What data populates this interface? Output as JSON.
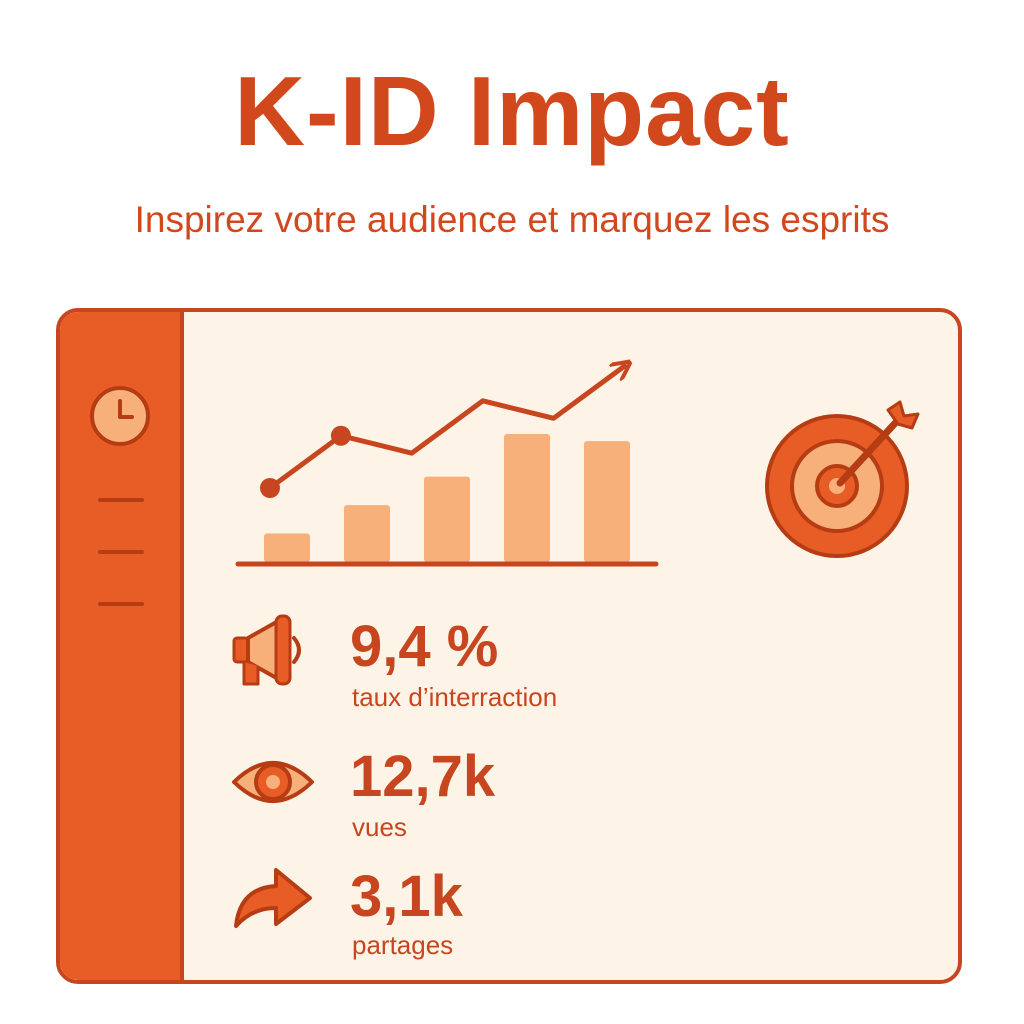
{
  "header": {
    "title": "K-ID Impact",
    "subtitle": "Inspirez votre audience et marquez les esprits"
  },
  "sidebar": {
    "icon": "clock-icon",
    "menu_items": 3
  },
  "chart_data": {
    "type": "bar",
    "categories": [
      "",
      "",
      "",
      "",
      ""
    ],
    "values": [
      2,
      4,
      6,
      9,
      8.5
    ],
    "trend_line": [
      3,
      6,
      5,
      8,
      7,
      10
    ],
    "colors": {
      "bars": "#f7b07a",
      "line": "#c8461f"
    }
  },
  "stats": [
    {
      "icon": "megaphone-icon",
      "value": "9,4 %",
      "label": "taux d’interraction"
    },
    {
      "icon": "eye-icon",
      "value": "12,7k",
      "label": "vues"
    },
    {
      "icon": "share-arrow-icon",
      "value": "3,1k",
      "label": "partages"
    }
  ],
  "colors": {
    "accent": "#d2481d",
    "sidebar": "#e85d25",
    "panel": "#fdf3e7",
    "light": "#f7b07a"
  }
}
